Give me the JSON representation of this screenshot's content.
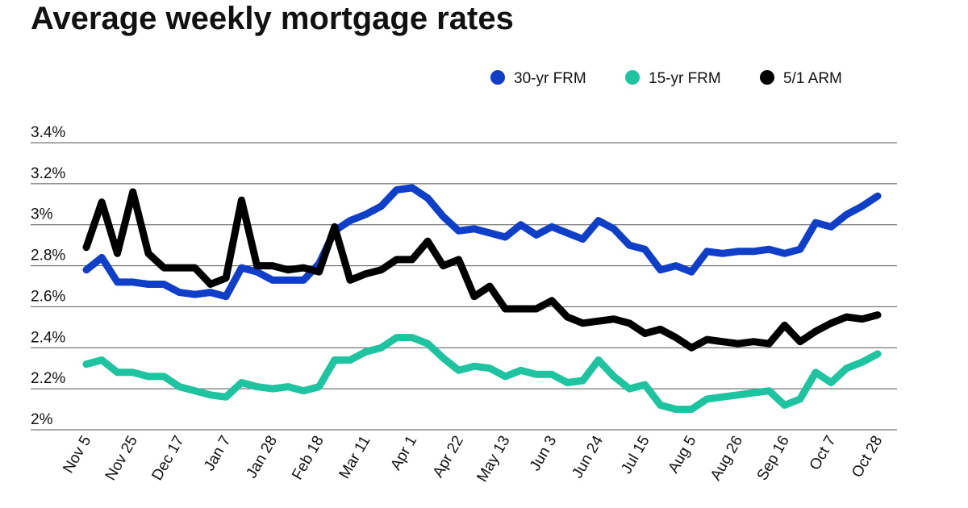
{
  "chart_data": {
    "type": "line",
    "title": "Average weekly mortgage rates",
    "categories": [
      "Nov 5",
      null,
      null,
      "Nov 25",
      null,
      null,
      "Dec 17",
      null,
      null,
      "Jan 7",
      null,
      null,
      "Jan 28",
      null,
      null,
      "Feb 18",
      null,
      null,
      "Mar 11",
      null,
      null,
      "Apr 1",
      null,
      null,
      "Apr 22",
      null,
      null,
      "May 13",
      null,
      null,
      "Jun 3",
      null,
      null,
      "Jun 24",
      null,
      null,
      "Jul 15",
      null,
      null,
      "Aug 5",
      null,
      null,
      "Aug 26",
      null,
      null,
      "Sep 16",
      null,
      null,
      "Oct 7",
      null,
      null,
      "Oct 28"
    ],
    "series": [
      {
        "name": "30-yr FRM",
        "color": "#0f3fc8",
        "values": [
          2.78,
          2.84,
          2.72,
          2.72,
          2.71,
          2.71,
          2.67,
          2.66,
          2.67,
          2.65,
          2.79,
          2.77,
          2.73,
          2.73,
          2.73,
          2.81,
          2.97,
          3.02,
          3.05,
          3.09,
          3.17,
          3.18,
          3.13,
          3.04,
          2.97,
          2.98,
          2.96,
          2.94,
          3.0,
          2.95,
          2.99,
          2.96,
          2.93,
          3.02,
          2.98,
          2.9,
          2.88,
          2.78,
          2.8,
          2.77,
          2.87,
          2.86,
          2.87,
          2.87,
          2.88,
          2.86,
          2.88,
          3.01,
          2.99,
          3.05,
          3.09,
          3.14
        ]
      },
      {
        "name": "15-yr FRM",
        "color": "#1ec4a0",
        "values": [
          2.32,
          2.34,
          2.28,
          2.28,
          2.26,
          2.26,
          2.21,
          2.19,
          2.17,
          2.16,
          2.23,
          2.21,
          2.2,
          2.21,
          2.19,
          2.21,
          2.34,
          2.34,
          2.38,
          2.4,
          2.45,
          2.45,
          2.42,
          2.35,
          2.29,
          2.31,
          2.3,
          2.26,
          2.29,
          2.27,
          2.27,
          2.23,
          2.24,
          2.34,
          2.26,
          2.2,
          2.22,
          2.12,
          2.1,
          2.1,
          2.15,
          2.16,
          2.17,
          2.18,
          2.19,
          2.12,
          2.15,
          2.28,
          2.23,
          2.3,
          2.33,
          2.37
        ]
      },
      {
        "name": "5/1 ARM",
        "color": "#000000",
        "values": [
          2.89,
          3.11,
          2.86,
          3.16,
          2.86,
          2.79,
          2.79,
          2.79,
          2.71,
          2.74,
          3.12,
          2.8,
          2.8,
          2.78,
          2.79,
          2.77,
          2.99,
          2.73,
          2.76,
          2.78,
          2.83,
          2.83,
          2.92,
          2.8,
          2.83,
          2.65,
          2.7,
          2.59,
          2.59,
          2.59,
          2.63,
          2.55,
          2.52,
          2.53,
          2.54,
          2.52,
          2.47,
          2.49,
          2.45,
          2.4,
          2.44,
          2.43,
          2.42,
          2.43,
          2.42,
          2.51,
          2.43,
          2.48,
          2.52,
          2.55,
          2.54,
          2.56
        ]
      }
    ],
    "ylim": [
      2,
      3.4
    ],
    "yticks": [
      {
        "value": 2,
        "label": "2%"
      },
      {
        "value": 2.2,
        "label": "2.2%"
      },
      {
        "value": 2.4,
        "label": "2.4%"
      },
      {
        "value": 2.6,
        "label": "2.6%"
      },
      {
        "value": 2.8,
        "label": "2.8%"
      },
      {
        "value": 3,
        "label": "3%"
      },
      {
        "value": 3.2,
        "label": "3.2%"
      },
      {
        "value": 3.4,
        "label": "3.4%"
      }
    ],
    "grid": true,
    "legend": "top-right"
  }
}
